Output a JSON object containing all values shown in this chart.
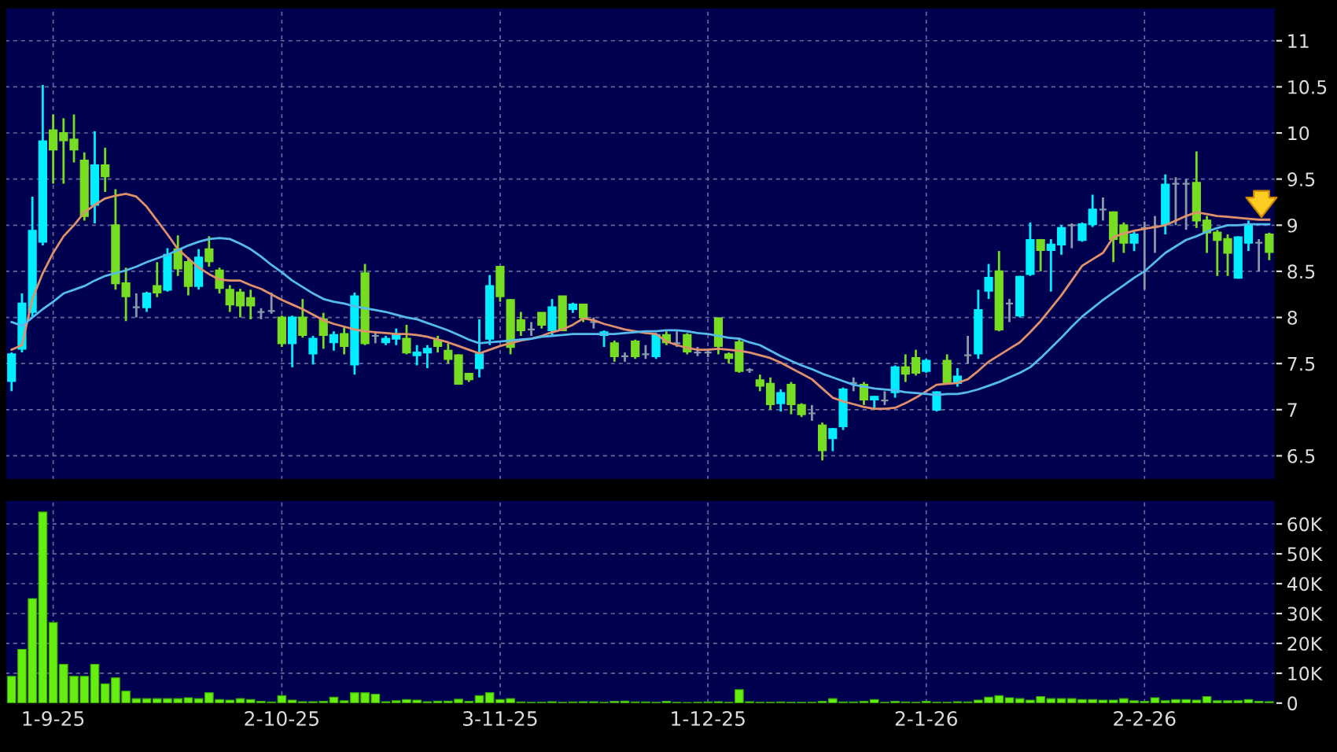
{
  "chart_data": [
    {
      "type": "candlestick",
      "categories": [
        null,
        null,
        null,
        null,
        null,
        null,
        null,
        null,
        null,
        null,
        null,
        null,
        null,
        null,
        null,
        null,
        null,
        null,
        null,
        null,
        null,
        null,
        null,
        null,
        null,
        null,
        null,
        null,
        null,
        null,
        null,
        null,
        null,
        null,
        null,
        null,
        null,
        null,
        null,
        null,
        null,
        null,
        null,
        null,
        null,
        null,
        null,
        null,
        null,
        null,
        null,
        null,
        null,
        null,
        null,
        null,
        null,
        null,
        null,
        null,
        null,
        null,
        null,
        null,
        null,
        null,
        null,
        null,
        null,
        null,
        null,
        null,
        null,
        null,
        null,
        null,
        null,
        null,
        null,
        null,
        null,
        null,
        null,
        null,
        null,
        null,
        null,
        null,
        null,
        null,
        null,
        null,
        null,
        null,
        null,
        null,
        null,
        null,
        null,
        null,
        null,
        null,
        null,
        null,
        null,
        null,
        null,
        null,
        null,
        null,
        null,
        null,
        null,
        null,
        null,
        null,
        null,
        null,
        null,
        null,
        null,
        null
      ],
      "ohlc": [
        [
          7.31,
          7.62,
          7.2,
          7.6
        ],
        [
          7.66,
          8.26,
          7.62,
          8.15
        ],
        [
          8.06,
          9.31,
          8.0,
          8.94
        ],
        [
          8.82,
          10.52,
          8.78,
          9.91
        ],
        [
          10.03,
          10.2,
          9.45,
          9.82
        ],
        [
          10.0,
          10.16,
          9.45,
          9.92
        ],
        [
          9.93,
          10.2,
          9.68,
          9.82
        ],
        [
          9.7,
          9.79,
          9.05,
          9.1
        ],
        [
          9.22,
          10.02,
          9.02,
          9.65
        ],
        [
          9.65,
          9.84,
          9.36,
          9.53
        ],
        [
          9.0,
          9.39,
          8.3,
          8.37
        ],
        [
          8.37,
          8.54,
          7.96,
          8.23
        ],
        [
          8.11,
          8.26,
          8.0,
          8.11
        ],
        [
          8.11,
          8.28,
          8.06,
          8.26
        ],
        [
          8.34,
          8.6,
          8.22,
          8.27
        ],
        [
          8.3,
          8.75,
          8.28,
          8.68
        ],
        [
          8.74,
          8.89,
          8.45,
          8.53
        ],
        [
          8.6,
          8.65,
          8.24,
          8.34
        ],
        [
          8.34,
          8.74,
          8.3,
          8.65
        ],
        [
          8.74,
          8.88,
          8.55,
          8.61
        ],
        [
          8.51,
          8.54,
          8.26,
          8.32
        ],
        [
          8.3,
          8.35,
          8.06,
          8.14
        ],
        [
          8.27,
          8.31,
          8.0,
          8.13
        ],
        [
          8.21,
          8.3,
          7.98,
          8.13
        ],
        [
          8.06,
          8.1,
          7.98,
          8.06
        ],
        [
          8.07,
          8.27,
          8.04,
          8.07
        ],
        [
          8.0,
          8.02,
          7.68,
          7.72
        ],
        [
          7.72,
          8.02,
          7.46,
          8.0
        ],
        [
          8.0,
          8.2,
          7.78,
          7.81
        ],
        [
          7.61,
          7.8,
          7.49,
          7.77
        ],
        [
          7.98,
          8.05,
          7.66,
          7.81
        ],
        [
          7.73,
          7.85,
          7.64,
          7.81
        ],
        [
          7.82,
          7.9,
          7.6,
          7.69
        ],
        [
          7.49,
          8.27,
          7.38,
          8.23
        ],
        [
          8.48,
          8.58,
          7.7,
          7.72
        ],
        [
          7.8,
          7.85,
          7.72,
          7.8
        ],
        [
          7.73,
          7.8,
          7.7,
          7.77
        ],
        [
          7.77,
          7.88,
          7.7,
          7.81
        ],
        [
          7.77,
          7.92,
          7.6,
          7.62
        ],
        [
          7.59,
          7.7,
          7.48,
          7.62
        ],
        [
          7.62,
          7.7,
          7.45,
          7.66
        ],
        [
          7.75,
          7.8,
          7.62,
          7.69
        ],
        [
          7.64,
          7.72,
          7.5,
          7.55
        ],
        [
          7.59,
          7.6,
          7.27,
          7.28
        ],
        [
          7.39,
          7.4,
          7.3,
          7.33
        ],
        [
          7.45,
          7.98,
          7.35,
          7.6
        ],
        [
          7.77,
          8.46,
          7.7,
          8.34
        ],
        [
          8.55,
          8.56,
          8.17,
          8.23
        ],
        [
          8.19,
          8.2,
          7.6,
          7.68
        ],
        [
          7.97,
          8.06,
          7.8,
          7.86
        ],
        [
          7.87,
          7.95,
          7.8,
          7.87
        ],
        [
          8.05,
          8.05,
          7.88,
          7.92
        ],
        [
          7.86,
          8.2,
          7.8,
          8.11
        ],
        [
          8.23,
          8.23,
          7.85,
          7.86
        ],
        [
          8.09,
          8.16,
          8.05,
          8.14
        ],
        [
          8.14,
          8.15,
          7.95,
          8.0
        ],
        [
          7.95,
          8.0,
          7.88,
          7.95
        ],
        [
          7.81,
          7.86,
          7.68,
          7.84
        ],
        [
          7.72,
          7.75,
          7.52,
          7.58
        ],
        [
          7.58,
          7.62,
          7.52,
          7.58
        ],
        [
          7.74,
          7.76,
          7.55,
          7.58
        ],
        [
          7.6,
          7.7,
          7.55,
          7.6
        ],
        [
          7.58,
          7.83,
          7.55,
          7.81
        ],
        [
          7.81,
          7.85,
          7.7,
          7.73
        ],
        [
          7.72,
          7.85,
          7.68,
          7.72
        ],
        [
          7.81,
          7.83,
          7.6,
          7.63
        ],
        [
          7.62,
          7.68,
          7.58,
          7.62
        ],
        [
          7.62,
          7.66,
          7.57,
          7.62
        ],
        [
          7.99,
          8.0,
          7.6,
          7.69
        ],
        [
          7.6,
          7.62,
          7.5,
          7.56
        ],
        [
          7.73,
          7.78,
          7.4,
          7.42
        ],
        [
          7.43,
          7.45,
          7.4,
          7.43
        ],
        [
          7.32,
          7.38,
          7.2,
          7.26
        ],
        [
          7.28,
          7.35,
          7.0,
          7.06
        ],
        [
          7.07,
          7.22,
          6.98,
          7.18
        ],
        [
          7.27,
          7.3,
          6.95,
          7.06
        ],
        [
          7.05,
          7.07,
          6.92,
          6.95
        ],
        [
          6.96,
          7.05,
          6.88,
          6.96
        ],
        [
          6.83,
          6.86,
          6.45,
          6.56
        ],
        [
          6.69,
          6.8,
          6.55,
          6.79
        ],
        [
          6.82,
          7.24,
          6.78,
          7.22
        ],
        [
          7.29,
          7.35,
          7.2,
          7.29
        ],
        [
          7.27,
          7.3,
          7.05,
          7.11
        ],
        [
          7.11,
          7.15,
          7.0,
          7.14
        ],
        [
          7.1,
          7.2,
          7.05,
          7.1
        ],
        [
          7.19,
          7.48,
          7.13,
          7.46
        ],
        [
          7.46,
          7.6,
          7.3,
          7.39
        ],
        [
          7.56,
          7.65,
          7.37,
          7.4
        ],
        [
          7.42,
          7.55,
          7.4,
          7.53
        ],
        [
          7.0,
          7.2,
          6.98,
          7.19
        ],
        [
          7.53,
          7.6,
          7.28,
          7.29
        ],
        [
          7.29,
          7.45,
          7.25,
          7.36
        ],
        [
          7.59,
          7.8,
          7.5,
          7.59
        ],
        [
          7.61,
          8.3,
          7.55,
          8.08
        ],
        [
          8.29,
          8.58,
          8.2,
          8.43
        ],
        [
          8.5,
          8.72,
          7.85,
          7.87
        ],
        [
          8.15,
          8.2,
          7.95,
          8.15
        ],
        [
          8.02,
          8.45,
          8.0,
          8.44
        ],
        [
          8.47,
          9.03,
          8.45,
          8.84
        ],
        [
          8.84,
          8.85,
          8.5,
          8.73
        ],
        [
          8.73,
          8.85,
          8.28,
          8.79
        ],
        [
          8.79,
          9.0,
          8.68,
          8.97
        ],
        [
          9.0,
          9.02,
          8.75,
          9.0
        ],
        [
          8.84,
          9.03,
          8.82,
          9.01
        ],
        [
          9.01,
          9.33,
          8.98,
          9.17
        ],
        [
          9.17,
          9.3,
          9.05,
          9.17
        ],
        [
          9.14,
          9.15,
          8.6,
          8.85
        ],
        [
          9.0,
          9.03,
          8.7,
          8.81
        ],
        [
          8.81,
          8.93,
          8.72,
          8.9
        ],
        [
          8.97,
          9.04,
          8.3,
          8.97
        ],
        [
          8.98,
          9.1,
          8.7,
          8.98
        ],
        [
          9.01,
          9.55,
          8.9,
          9.44
        ],
        [
          9.45,
          9.52,
          9.0,
          9.45
        ],
        [
          9.45,
          9.5,
          8.95,
          9.45
        ],
        [
          9.46,
          9.8,
          8.97,
          9.05
        ],
        [
          9.05,
          9.1,
          8.7,
          8.92
        ],
        [
          8.92,
          8.95,
          8.45,
          8.84
        ],
        [
          8.85,
          8.9,
          8.45,
          8.7
        ],
        [
          8.43,
          8.88,
          8.42,
          8.87
        ],
        [
          8.81,
          9.05,
          8.72,
          9.01
        ],
        [
          8.81,
          8.85,
          8.5,
          8.81
        ],
        [
          8.9,
          8.92,
          8.62,
          8.71
        ]
      ],
      "colors": [
        "#00eeff",
        "#00eeff",
        "#00eeff",
        "#00eeff",
        "#77dd22",
        "#77dd22",
        "#77dd22",
        "#77dd22",
        "#00eeff",
        "#77dd22",
        "#77dd22",
        "#77dd22",
        "#8899aa",
        "#00eeff",
        "#77dd22",
        "#00eeff",
        "#77dd22",
        "#77dd22",
        "#00eeff",
        "#77dd22",
        "#77dd22",
        "#77dd22",
        "#77dd22",
        "#77dd22",
        "#8899aa",
        "#8899aa",
        "#77dd22",
        "#00eeff",
        "#77dd22",
        "#00eeff",
        "#77dd22",
        "#00eeff",
        "#77dd22",
        "#00eeff",
        "#77dd22",
        "#8899aa",
        "#00eeff",
        "#00eeff",
        "#77dd22",
        "#00eeff",
        "#00eeff",
        "#77dd22",
        "#77dd22",
        "#77dd22",
        "#77dd22",
        "#00eeff",
        "#00eeff",
        "#77dd22",
        "#77dd22",
        "#77dd22",
        "#8899aa",
        "#77dd22",
        "#00eeff",
        "#77dd22",
        "#00eeff",
        "#77dd22",
        "#8899aa",
        "#00eeff",
        "#77dd22",
        "#8899aa",
        "#77dd22",
        "#8899aa",
        "#00eeff",
        "#77dd22",
        "#8899aa",
        "#77dd22",
        "#8899aa",
        "#8899aa",
        "#77dd22",
        "#77dd22",
        "#77dd22",
        "#8899aa",
        "#77dd22",
        "#77dd22",
        "#00eeff",
        "#77dd22",
        "#77dd22",
        "#8899aa",
        "#77dd22",
        "#00eeff",
        "#00eeff",
        "#8899aa",
        "#77dd22",
        "#00eeff",
        "#8899aa",
        "#00eeff",
        "#77dd22",
        "#77dd22",
        "#00eeff",
        "#00eeff",
        "#77dd22",
        "#00eeff",
        "#8899aa",
        "#00eeff",
        "#00eeff",
        "#77dd22",
        "#8899aa",
        "#00eeff",
        "#00eeff",
        "#77dd22",
        "#00eeff",
        "#00eeff",
        "#8899aa",
        "#00eeff",
        "#00eeff",
        "#8899aa",
        "#77dd22",
        "#77dd22",
        "#00eeff",
        "#8899aa",
        "#8899aa",
        "#00eeff",
        "#8899aa",
        "#8899aa",
        "#77dd22",
        "#77dd22",
        "#77dd22",
        "#77dd22",
        "#00eeff",
        "#00eeff",
        "#8899aa",
        "#77dd22"
      ],
      "series": [
        {
          "type": "line",
          "color": "#e0906a",
          "values": [
            7.65,
            7.7,
            8.2,
            8.48,
            8.7,
            8.88,
            9.0,
            9.14,
            9.22,
            9.29,
            9.32,
            9.34,
            9.31,
            9.2,
            9.05,
            8.9,
            8.74,
            8.64,
            8.54,
            8.47,
            8.41,
            8.4,
            8.4,
            8.35,
            8.31,
            8.25,
            8.19,
            8.14,
            8.09,
            8.03,
            7.97,
            7.93,
            7.9,
            7.87,
            7.85,
            7.84,
            7.83,
            7.82,
            7.82,
            7.81,
            7.79,
            7.76,
            7.73,
            7.69,
            7.65,
            7.61,
            7.65,
            7.69,
            7.72,
            7.75,
            7.77,
            7.8,
            7.84,
            7.87,
            7.92,
            7.99,
            7.97,
            7.93,
            7.9,
            7.87,
            7.85,
            7.83,
            7.82,
            7.74,
            7.7,
            7.67,
            7.65,
            7.65,
            7.66,
            7.65,
            7.64,
            7.62,
            7.59,
            7.56,
            7.51,
            7.45,
            7.39,
            7.33,
            7.23,
            7.13,
            7.09,
            7.06,
            7.03,
            7.01,
            7.01,
            7.02,
            7.07,
            7.13,
            7.2,
            7.27,
            7.28,
            7.29,
            7.33,
            7.42,
            7.52,
            7.59,
            7.66,
            7.73,
            7.84,
            7.96,
            8.1,
            8.24,
            8.4,
            8.56,
            8.63,
            8.7,
            8.87,
            8.91,
            8.94,
            8.96,
            8.98,
            9.0,
            9.05,
            9.1,
            9.14,
            9.12,
            9.1,
            9.09,
            9.08,
            9.07,
            9.06,
            9.06
          ]
        },
        {
          "type": "line",
          "color": "#55bbee",
          "values": [
            7.95,
            7.91,
            8.0,
            8.09,
            8.17,
            8.26,
            8.3,
            8.34,
            8.4,
            8.45,
            8.48,
            8.51,
            8.55,
            8.6,
            8.64,
            8.68,
            8.73,
            8.78,
            8.82,
            8.85,
            8.86,
            8.85,
            8.8,
            8.74,
            8.66,
            8.57,
            8.49,
            8.4,
            8.33,
            8.26,
            8.2,
            8.17,
            8.15,
            8.12,
            8.1,
            8.08,
            8.06,
            8.03,
            8.0,
            7.98,
            7.94,
            7.9,
            7.86,
            7.81,
            7.76,
            7.72,
            7.73,
            7.74,
            7.75,
            7.76,
            7.77,
            7.79,
            7.8,
            7.81,
            7.82,
            7.82,
            7.82,
            7.82,
            7.82,
            7.83,
            7.84,
            7.85,
            7.85,
            7.86,
            7.86,
            7.85,
            7.83,
            7.82,
            7.8,
            7.78,
            7.77,
            7.73,
            7.7,
            7.64,
            7.58,
            7.53,
            7.48,
            7.44,
            7.39,
            7.35,
            7.31,
            7.27,
            7.25,
            7.23,
            7.22,
            7.21,
            7.19,
            7.18,
            7.17,
            7.16,
            7.17,
            7.17,
            7.19,
            7.22,
            7.26,
            7.3,
            7.35,
            7.4,
            7.46,
            7.56,
            7.67,
            7.78,
            7.9,
            8.01,
            8.1,
            8.19,
            8.27,
            8.35,
            8.43,
            8.5,
            8.6,
            8.7,
            8.77,
            8.84,
            8.88,
            8.93,
            8.97,
            9.0,
            9.0,
            9.01,
            9.01,
            9.01
          ]
        }
      ],
      "ylim": [
        6.24,
        11.36
      ],
      "yticks": [
        6.5,
        7,
        7.5,
        8,
        8.5,
        9,
        9.5,
        10,
        10.5,
        11
      ],
      "grid": true,
      "tick_labels": "y"
    },
    {
      "type": "bar",
      "categories": [
        null,
        null,
        null,
        null,
        "1-9-25",
        null,
        null,
        null,
        null,
        null,
        null,
        null,
        null,
        null,
        null,
        null,
        null,
        null,
        null,
        null,
        null,
        null,
        null,
        null,
        null,
        null,
        "2-10-25",
        null,
        null,
        null,
        null,
        null,
        null,
        null,
        null,
        null,
        null,
        null,
        null,
        null,
        null,
        null,
        null,
        null,
        null,
        null,
        null,
        "3-11-25",
        null,
        null,
        null,
        null,
        null,
        null,
        null,
        null,
        null,
        null,
        null,
        null,
        null,
        null,
        null,
        null,
        null,
        null,
        null,
        "1-12-25",
        null,
        null,
        null,
        null,
        null,
        null,
        null,
        null,
        null,
        null,
        null,
        null,
        null,
        null,
        null,
        null,
        null,
        null,
        null,
        null,
        "2-1-26",
        null,
        null,
        null,
        null,
        null,
        null,
        null,
        null,
        null,
        null,
        null,
        null,
        null,
        null,
        null,
        null,
        null,
        null,
        null,
        null,
        "2-2-26",
        null,
        null,
        null,
        null,
        null,
        null,
        null,
        null,
        null,
        null,
        null,
        null
      ],
      "color": "#66ee11",
      "values": [
        9000,
        18000,
        35000,
        64000,
        27000,
        13000,
        9000,
        9000,
        13000,
        6500,
        8500,
        4000,
        1500,
        1500,
        1500,
        1500,
        1500,
        1800,
        1500,
        3500,
        1200,
        1000,
        1500,
        1200,
        600,
        400,
        2500,
        1000,
        500,
        500,
        600,
        2000,
        800,
        3500,
        3500,
        3000,
        500,
        800,
        1200,
        1000,
        500,
        700,
        700,
        1300,
        600,
        2500,
        3500,
        1200,
        1500,
        400,
        300,
        300,
        500,
        300,
        400,
        500,
        500,
        300,
        600,
        700,
        400,
        400,
        300,
        600,
        300,
        200,
        300,
        400,
        500,
        300,
        4500,
        500,
        300,
        300,
        400,
        300,
        300,
        300,
        600,
        1500,
        400,
        400,
        600,
        1200,
        300,
        600,
        400,
        300,
        600,
        300,
        300,
        500,
        400,
        1000,
        2000,
        2500,
        1800,
        1500,
        1000,
        2200,
        1500,
        1500,
        1500,
        1200,
        1200,
        1000,
        1000,
        1500,
        800,
        600,
        1800,
        800,
        1200,
        1200,
        1000,
        2200,
        800,
        800,
        800,
        1200,
        600,
        500
      ],
      "ylim": [
        0,
        68000
      ],
      "yticks": [
        0,
        {
          "value": 10000,
          "label": "10K"
        },
        {
          "value": 20000,
          "label": "20K"
        },
        {
          "value": 30000,
          "label": "30K"
        },
        {
          "value": 40000,
          "label": "40K"
        },
        {
          "value": 50000,
          "label": "50K"
        },
        {
          "value": 60000,
          "label": "60K"
        }
      ],
      "grid": true
    }
  ]
}
